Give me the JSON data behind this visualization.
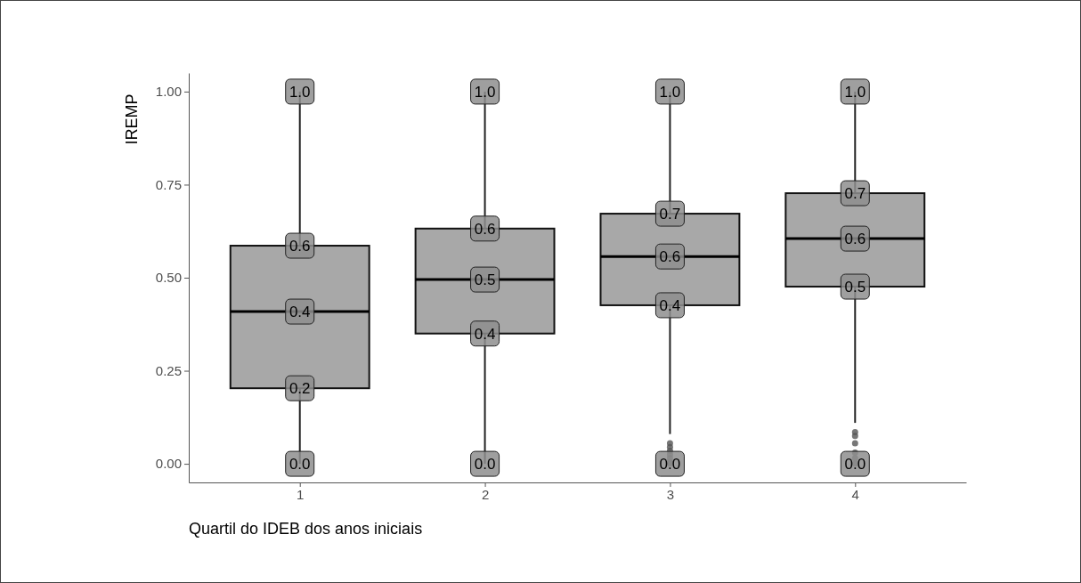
{
  "chart_data": {
    "type": "box",
    "xlabel": "Quartil do IDEB dos anos iniciais",
    "ylabel": "IREMP",
    "categories": [
      "1",
      "2",
      "3",
      "4"
    ],
    "color": "#a8a8a8",
    "boxes": [
      {
        "low": 0,
        "q1": 0.203,
        "median": 0.409,
        "q3": 0.586,
        "high": 1
      },
      {
        "low": 0,
        "q1": 0.35,
        "median": 0.495,
        "q3": 0.632,
        "high": 1
      },
      {
        "low": 0.08,
        "q1": 0.426,
        "median": 0.557,
        "q3": 0.672,
        "high": 1,
        "outliers": [
          0.055,
          0.045,
          0.035,
          0.025,
          0.015,
          0.005,
          0
        ]
      },
      {
        "low": 0.11,
        "q1": 0.476,
        "median": 0.605,
        "q3": 0.727,
        "high": 1,
        "outliers": [
          0.085,
          0.075,
          0.055,
          0.03,
          0.015,
          0
        ]
      }
    ],
    "ylim": [
      -0.05,
      1.05
    ],
    "yticks": [
      {
        "value": 0,
        "label": "0.00"
      },
      {
        "value": 0.25,
        "label": "0.25"
      },
      {
        "value": 0.5,
        "label": "0.50"
      },
      {
        "value": 0.75,
        "label": "0.75"
      },
      {
        "value": 1,
        "label": "1.00"
      }
    ],
    "grid": false,
    "annotations": [
      {
        "text": "1.0",
        "x": "1",
        "y": 1
      },
      {
        "text": "0.6",
        "x": "1",
        "y": 0.586
      },
      {
        "text": "0.4",
        "x": "1",
        "y": 0.409
      },
      {
        "text": "0.2",
        "x": "1",
        "y": 0.203
      },
      {
        "text": "0.0",
        "x": "1",
        "y": 0
      },
      {
        "text": "1.0",
        "x": "2",
        "y": 1
      },
      {
        "text": "0.6",
        "x": "2",
        "y": 0.632
      },
      {
        "text": "0.5",
        "x": "2",
        "y": 0.495
      },
      {
        "text": "0.4",
        "x": "2",
        "y": 0.35
      },
      {
        "text": "0.0",
        "x": "2",
        "y": 0
      },
      {
        "text": "1.0",
        "x": "3",
        "y": 1
      },
      {
        "text": "0.7",
        "x": "3",
        "y": 0.672
      },
      {
        "text": "0.6",
        "x": "3",
        "y": 0.557
      },
      {
        "text": "0.4",
        "x": "3",
        "y": 0.426
      },
      "0.0",
      {
        "text": "1.0",
        "x": "4",
        "y": 1
      },
      {
        "text": "0.7",
        "x": "4",
        "y": 0.727
      },
      {
        "text": "0.6",
        "x": "4",
        "y": 0.605
      },
      {
        "text": "0.5",
        "x": "4",
        "y": 0.476
      },
      "0.0"
    ]
  }
}
